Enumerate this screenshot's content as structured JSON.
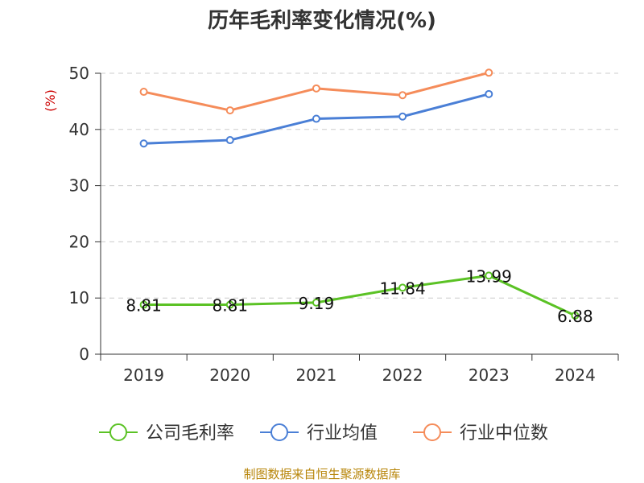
{
  "chart_data": {
    "type": "line",
    "title": "历年毛利率变化情况(%)",
    "ylabel": "(%)",
    "xlabel": "",
    "categories": [
      "2019",
      "2020",
      "2021",
      "2022",
      "2023",
      "2024"
    ],
    "ylim": [
      0,
      50
    ],
    "yticks": [
      0,
      10,
      20,
      30,
      40,
      50
    ],
    "grid": true,
    "legend_position": "bottom",
    "series": [
      {
        "name": "公司毛利率",
        "color": "#5bc225",
        "values": [
          8.81,
          8.81,
          9.19,
          11.84,
          13.99,
          6.88
        ],
        "labels": [
          "8.81",
          "8.81",
          "9.19",
          "11.84",
          "13.99",
          "6.88"
        ]
      },
      {
        "name": "行业均值",
        "color": "#4a7fd6",
        "values": [
          37.5,
          38.1,
          41.9,
          42.3,
          46.3,
          null
        ]
      },
      {
        "name": "行业中位数",
        "color": "#f58c5a",
        "values": [
          46.7,
          43.4,
          47.3,
          46.1,
          50.1,
          null
        ]
      }
    ]
  },
  "source": "制图数据来自恒生聚源数据库"
}
